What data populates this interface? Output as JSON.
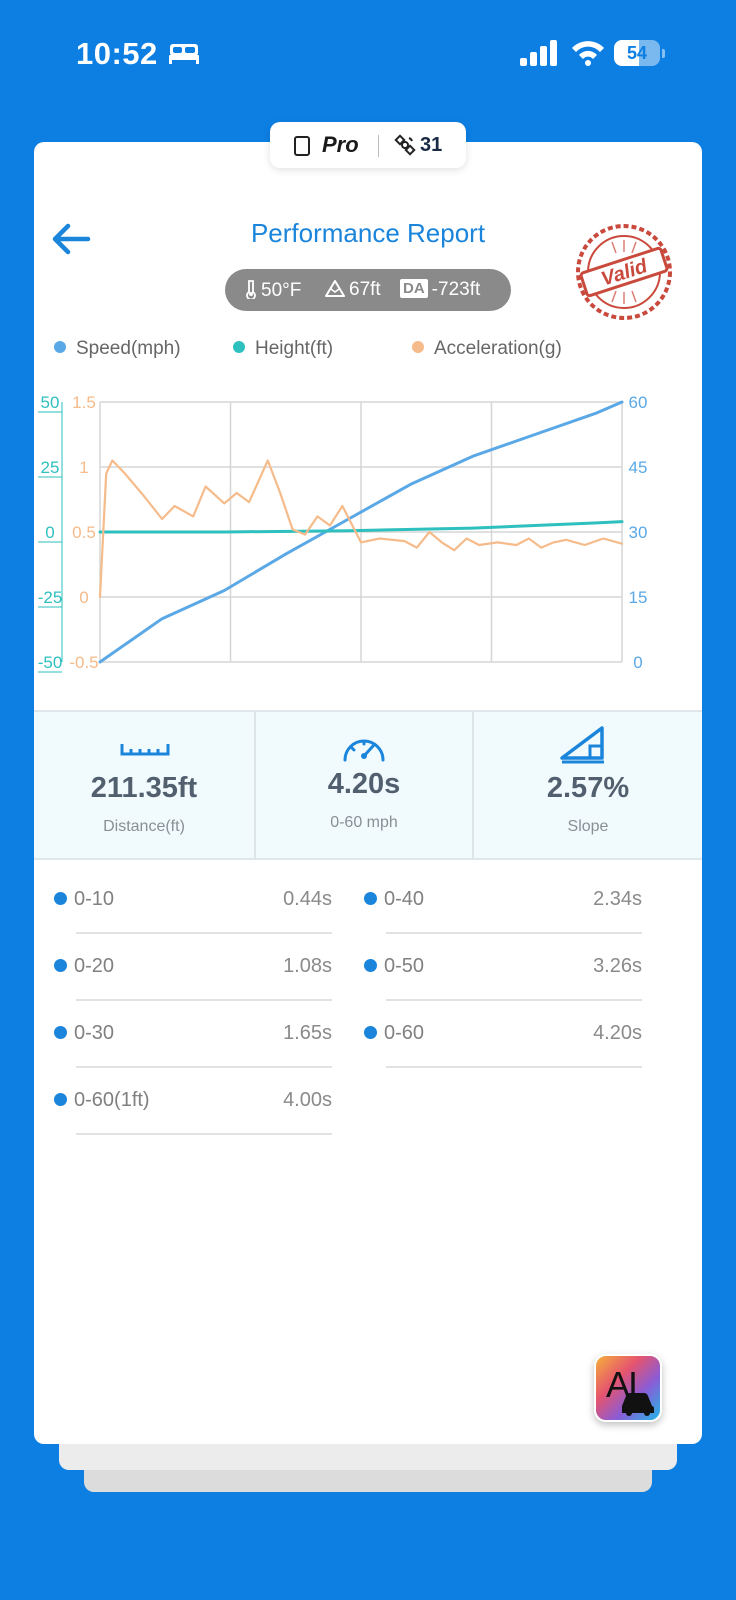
{
  "status_bar": {
    "time": "10:52",
    "battery": "54",
    "battery_level": 0.54
  },
  "header": {
    "badge_label": "Pro",
    "satellite_count": "31",
    "title": "Performance Report",
    "temperature": "50°F",
    "altitude": "67ft",
    "da_label": "DA",
    "density_altitude": "-723ft",
    "stamp_text": "Valid"
  },
  "chart_data": {
    "type": "line",
    "legend": [
      "Speed(mph)",
      "Height(ft)",
      "Acceleration(g)"
    ],
    "colors": {
      "speed": "#5aa8e6",
      "height": "#2ebfbf",
      "accel": "#f5bb8a"
    },
    "axes": {
      "height": {
        "ticks": [
          "50",
          "25",
          "0",
          "-25",
          "-50"
        ],
        "range": [
          -50,
          50
        ]
      },
      "accel": {
        "ticks": [
          "1.5",
          "1",
          "0.5",
          "0",
          "-0.5"
        ],
        "range": [
          -0.5,
          1.5
        ]
      },
      "speed": {
        "ticks": [
          "60",
          "45",
          "30",
          "15",
          "0"
        ],
        "range": [
          0,
          60
        ]
      }
    },
    "grid": true,
    "series": [
      {
        "name": "Speed(mph)",
        "axis": "speed",
        "x": [
          0,
          0.5,
          1,
          1.5,
          2,
          2.5,
          3,
          3.5,
          4,
          4.2
        ],
        "values": [
          0,
          10,
          16.5,
          25,
          33,
          41,
          47.5,
          52.5,
          57.5,
          60
        ]
      },
      {
        "name": "Height(ft)",
        "axis": "height",
        "x": [
          0,
          1,
          2,
          3,
          4,
          4.2
        ],
        "values": [
          0,
          0,
          0.5,
          1.5,
          3.5,
          4
        ]
      },
      {
        "name": "Acceleration(g)",
        "axis": "accel",
        "x": [
          0,
          0.05,
          0.1,
          0.2,
          0.35,
          0.5,
          0.6,
          0.75,
          0.85,
          1.0,
          1.1,
          1.2,
          1.35,
          1.45,
          1.55,
          1.65,
          1.75,
          1.85,
          1.95,
          2.1,
          2.25,
          2.45,
          2.55,
          2.65,
          2.75,
          2.85,
          2.95,
          3.05,
          3.2,
          3.35,
          3.45,
          3.55,
          3.65,
          3.75,
          3.9,
          4.05,
          4.2
        ],
        "values": [
          0,
          0.95,
          1.05,
          0.95,
          0.78,
          0.6,
          0.7,
          0.62,
          0.85,
          0.72,
          0.8,
          0.73,
          1.05,
          0.8,
          0.52,
          0.48,
          0.62,
          0.55,
          0.7,
          0.42,
          0.45,
          0.43,
          0.38,
          0.5,
          0.42,
          0.36,
          0.45,
          0.4,
          0.42,
          0.4,
          0.45,
          0.38,
          0.42,
          0.44,
          0.4,
          0.45,
          0.41
        ]
      }
    ]
  },
  "stats": [
    {
      "value": "211.35ft",
      "label": "Distance(ft)",
      "icon": "ruler-icon"
    },
    {
      "value": "4.20s",
      "label": "0-60 mph",
      "icon": "speedometer-icon"
    },
    {
      "value": "2.57%",
      "label": "Slope",
      "icon": "slope-icon"
    }
  ],
  "splits": [
    {
      "name": "0-10",
      "time": "0.44s"
    },
    {
      "name": "0-40",
      "time": "2.34s"
    },
    {
      "name": "0-20",
      "time": "1.08s"
    },
    {
      "name": "0-50",
      "time": "3.26s"
    },
    {
      "name": "0-30",
      "time": "1.65s"
    },
    {
      "name": "0-60",
      "time": "4.20s"
    },
    {
      "name": "0-60(1ft)",
      "time": "4.00s"
    }
  ],
  "ai_button": {
    "label": "AI"
  }
}
